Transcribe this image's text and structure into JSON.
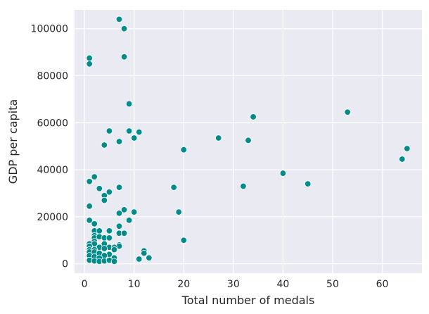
{
  "chart_data": {
    "type": "scatter",
    "title": "",
    "xlabel": "Total number of medals",
    "ylabel": "GDP per capita",
    "xlim": [
      -2,
      68
    ],
    "ylim": [
      -4000,
      108000
    ],
    "xticks": [
      0,
      10,
      20,
      30,
      40,
      50,
      60
    ],
    "yticks": [
      0,
      20000,
      40000,
      60000,
      80000,
      100000
    ],
    "grid": true,
    "background": "#eaeaf2",
    "point_color": "#008b8b",
    "point_edge_color": "#ffffff",
    "points": [
      {
        "x": 7,
        "y": 104000
      },
      {
        "x": 8,
        "y": 100000
      },
      {
        "x": 1,
        "y": 87500
      },
      {
        "x": 1,
        "y": 85000
      },
      {
        "x": 8,
        "y": 88000
      },
      {
        "x": 9,
        "y": 68000
      },
      {
        "x": 34,
        "y": 62500
      },
      {
        "x": 53,
        "y": 64500
      },
      {
        "x": 5,
        "y": 56500
      },
      {
        "x": 9,
        "y": 56500
      },
      {
        "x": 11,
        "y": 56000
      },
      {
        "x": 10,
        "y": 53500
      },
      {
        "x": 7,
        "y": 52000
      },
      {
        "x": 4,
        "y": 50500
      },
      {
        "x": 27,
        "y": 53500
      },
      {
        "x": 33,
        "y": 52500
      },
      {
        "x": 20,
        "y": 48500
      },
      {
        "x": 65,
        "y": 49000
      },
      {
        "x": 64,
        "y": 44500
      },
      {
        "x": 40,
        "y": 38500
      },
      {
        "x": 2,
        "y": 37000
      },
      {
        "x": 1,
        "y": 35000
      },
      {
        "x": 45,
        "y": 34000
      },
      {
        "x": 32,
        "y": 33000
      },
      {
        "x": 18,
        "y": 32500
      },
      {
        "x": 7,
        "y": 32500
      },
      {
        "x": 3,
        "y": 32000
      },
      {
        "x": 5,
        "y": 30500
      },
      {
        "x": 4,
        "y": 29000
      },
      {
        "x": 4,
        "y": 27000
      },
      {
        "x": 1,
        "y": 24500
      },
      {
        "x": 8,
        "y": 23000
      },
      {
        "x": 10,
        "y": 22000
      },
      {
        "x": 19,
        "y": 22000
      },
      {
        "x": 7,
        "y": 21500
      },
      {
        "x": 1,
        "y": 18500
      },
      {
        "x": 9,
        "y": 18500
      },
      {
        "x": 2,
        "y": 17000
      },
      {
        "x": 7,
        "y": 16000
      },
      {
        "x": 2,
        "y": 14000
      },
      {
        "x": 3,
        "y": 14000
      },
      {
        "x": 5,
        "y": 14000
      },
      {
        "x": 7,
        "y": 13000
      },
      {
        "x": 8,
        "y": 13000
      },
      {
        "x": 2,
        "y": 12000
      },
      {
        "x": 2,
        "y": 11000
      },
      {
        "x": 3,
        "y": 11500
      },
      {
        "x": 4,
        "y": 11000
      },
      {
        "x": 5,
        "y": 11000
      },
      {
        "x": 20,
        "y": 10000
      },
      {
        "x": 2,
        "y": 9500
      },
      {
        "x": 1,
        "y": 8500
      },
      {
        "x": 2,
        "y": 8500
      },
      {
        "x": 4,
        "y": 8500
      },
      {
        "x": 7,
        "y": 8000
      },
      {
        "x": 1,
        "y": 7500
      },
      {
        "x": 7,
        "y": 7500
      },
      {
        "x": 3,
        "y": 7000
      },
      {
        "x": 5,
        "y": 7000
      },
      {
        "x": 6,
        "y": 7000
      },
      {
        "x": 4,
        "y": 6500
      },
      {
        "x": 1,
        "y": 6000
      },
      {
        "x": 2,
        "y": 6000
      },
      {
        "x": 6,
        "y": 6000
      },
      {
        "x": 12,
        "y": 5500
      },
      {
        "x": 12,
        "y": 4500
      },
      {
        "x": 1,
        "y": 5000
      },
      {
        "x": 2,
        "y": 5000
      },
      {
        "x": 3,
        "y": 4500
      },
      {
        "x": 5,
        "y": 4000
      },
      {
        "x": 1,
        "y": 3500
      },
      {
        "x": 4,
        "y": 3500
      },
      {
        "x": 2,
        "y": 3000
      },
      {
        "x": 3,
        "y": 2500
      },
      {
        "x": 6,
        "y": 2500
      },
      {
        "x": 11,
        "y": 2000
      },
      {
        "x": 13,
        "y": 2500
      },
      {
        "x": 1,
        "y": 1500
      },
      {
        "x": 2,
        "y": 1200
      },
      {
        "x": 3,
        "y": 1000
      },
      {
        "x": 4,
        "y": 1200
      },
      {
        "x": 5,
        "y": 1500
      },
      {
        "x": 6,
        "y": 1000
      }
    ]
  }
}
